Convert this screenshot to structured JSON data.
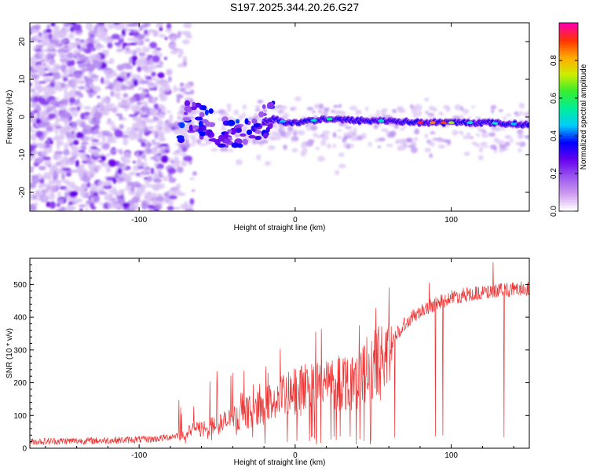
{
  "title": "S197.2025.344.20.26.G27",
  "colors": {
    "snr_line": "#ee3333",
    "background": "#ffffff",
    "axis": "#000000",
    "colormap": [
      "#ffffff",
      "#cc99ee",
      "#9955ee",
      "#6600ee",
      "#0000ff",
      "#00ccff",
      "#00ee99",
      "#33ee33",
      "#ccee00",
      "#ffaa00",
      "#ff3300",
      "#ff00aa"
    ]
  },
  "chart_data": [
    {
      "type": "heatmap",
      "title": "S197.2025.344.20.26.G27",
      "xlabel": "Height of straight line (km)",
      "ylabel": "Frequency (Hz)",
      "xlim": [
        -170,
        150
      ],
      "ylim": [
        -25,
        25
      ],
      "xticks": [
        -100,
        0,
        100
      ],
      "yticks": [
        -20,
        -10,
        0,
        10,
        20
      ],
      "colorbar": {
        "label": "Normalized spectral amplitude",
        "range": [
          0,
          1
        ],
        "ticks": [
          "0.0",
          "0.2",
          "0.4",
          "0.6",
          "0.8"
        ]
      },
      "ridge": {
        "x": [
          -73,
          -68,
          -62,
          -55,
          -48,
          -42,
          -36,
          -30,
          -24,
          -18,
          -12,
          -6,
          0,
          10,
          20,
          40,
          60,
          80,
          100,
          120,
          148
        ],
        "y": [
          0.5,
          -1,
          -1,
          -2.5,
          -4,
          -6,
          -5,
          -3.5,
          -2.5,
          -1,
          -0.5,
          -1.5,
          -1.5,
          -1,
          -0.5,
          -1,
          -1,
          -1.5,
          -1.5,
          -1.5,
          -2
        ]
      }
    },
    {
      "type": "line",
      "xlabel": "Height of straight line (km)",
      "ylabel": "SNR (10 * v/v)",
      "xlim": [
        -170,
        150
      ],
      "ylim": [
        0,
        580
      ],
      "xticks": [
        -100,
        0,
        100
      ],
      "yticks": [
        0,
        100,
        200,
        300,
        400,
        500
      ],
      "series": [
        {
          "name": "SNR",
          "x": [
            -170,
            -150,
            -130,
            -110,
            -90,
            -80,
            -70,
            -65,
            -60,
            -55,
            -50,
            -45,
            -40,
            -35,
            -30,
            -25,
            -20,
            -15,
            -10,
            -5,
            0,
            10,
            20,
            30,
            40,
            45,
            50,
            55,
            60,
            65,
            70,
            75,
            80,
            90,
            100,
            110,
            120,
            130,
            140,
            150
          ],
          "values": [
            20,
            22,
            23,
            25,
            28,
            35,
            45,
            55,
            60,
            65,
            72,
            80,
            90,
            100,
            110,
            120,
            130,
            140,
            150,
            160,
            170,
            185,
            195,
            205,
            215,
            225,
            245,
            265,
            310,
            350,
            380,
            400,
            420,
            440,
            460,
            470,
            475,
            480,
            485,
            490
          ]
        }
      ]
    }
  ]
}
